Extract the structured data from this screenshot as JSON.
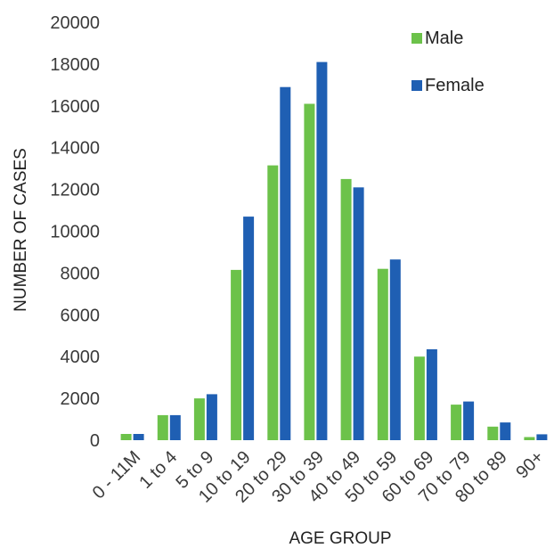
{
  "chart_data": {
    "type": "bar",
    "title": "",
    "xlabel": "AGE GROUP",
    "ylabel": "NUMBER OF CASES",
    "ylim": [
      0,
      20000
    ],
    "yticks": [
      "0",
      "2000",
      "4000",
      "6000",
      "8000",
      "10000",
      "12000",
      "14000",
      "16000",
      "18000",
      "20000"
    ],
    "categories": [
      "0 - 11M",
      "1 to 4",
      "5 to 9",
      "10 to 19",
      "20 to 29",
      "30 to 39",
      "40 to 49",
      "50 to 59",
      "60 to 69",
      "70 to 79",
      "80 to 89",
      "90+"
    ],
    "series": [
      {
        "name": "Male",
        "color": "#6cc24a",
        "values": [
          300,
          1200,
          2000,
          8150,
          13150,
          16100,
          12500,
          8200,
          4000,
          1700,
          650,
          150
        ]
      },
      {
        "name": "Female",
        "color": "#1f5fb3",
        "values": [
          300,
          1200,
          2200,
          10700,
          16900,
          18100,
          12100,
          8650,
          4350,
          1850,
          850,
          280
        ]
      }
    ],
    "legend_position": "top-right",
    "grid": false
  }
}
